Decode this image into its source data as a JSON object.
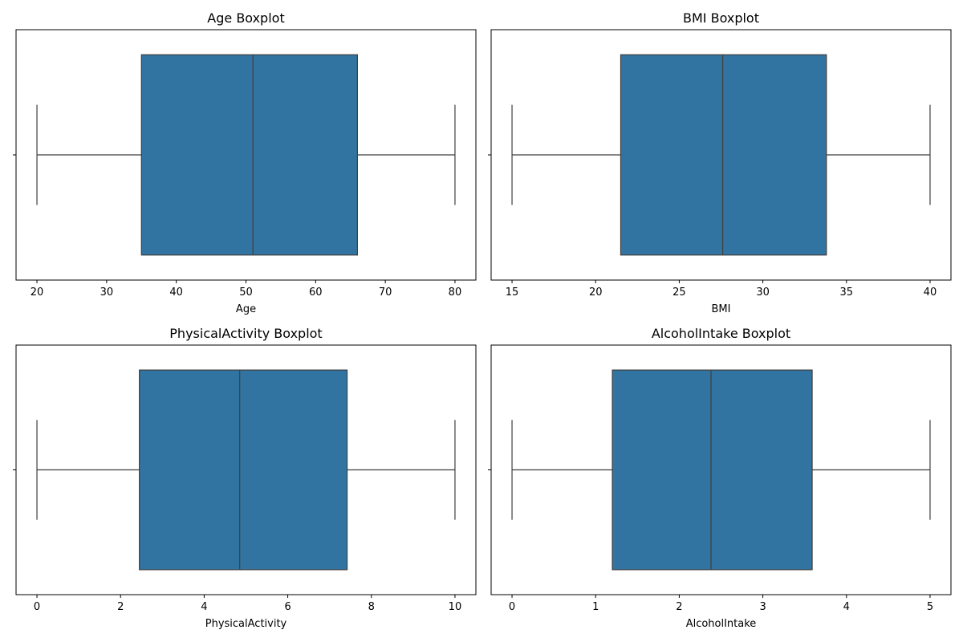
{
  "chart_data": [
    {
      "type": "boxplot",
      "title": "Age Boxplot",
      "xlabel": "Age",
      "xlim": [
        17,
        83
      ],
      "xticks": [
        20,
        30,
        40,
        50,
        60,
        70,
        80
      ],
      "stats": {
        "whisker_low": 20,
        "q1": 35,
        "median": 51,
        "q3": 66,
        "whisker_high": 80
      }
    },
    {
      "type": "boxplot",
      "title": "BMI Boxplot",
      "xlabel": "BMI",
      "xlim": [
        13.75,
        41.25
      ],
      "xticks": [
        15,
        20,
        25,
        30,
        35,
        40
      ],
      "stats": {
        "whisker_low": 15,
        "q1": 21.5,
        "median": 27.6,
        "q3": 33.8,
        "whisker_high": 40
      }
    },
    {
      "type": "boxplot",
      "title": "PhysicalActivity Boxplot",
      "xlabel": "PhysicalActivity",
      "xlim": [
        -0.5,
        10.5
      ],
      "xticks": [
        0,
        2,
        4,
        6,
        8,
        10
      ],
      "stats": {
        "whisker_low": 0,
        "q1": 2.45,
        "median": 4.85,
        "q3": 7.42,
        "whisker_high": 10
      }
    },
    {
      "type": "boxplot",
      "title": "AlcoholIntake Boxplot",
      "xlabel": "AlcoholIntake",
      "xlim": [
        -0.25,
        5.25
      ],
      "xticks": [
        0,
        1,
        2,
        3,
        4,
        5
      ],
      "stats": {
        "whisker_low": 0,
        "q1": 1.2,
        "median": 2.38,
        "q3": 3.59,
        "whisker_high": 5
      }
    }
  ],
  "colors": {
    "box_fill": "#3274a1",
    "line": "#3f3f3f",
    "axes": "#000000"
  }
}
